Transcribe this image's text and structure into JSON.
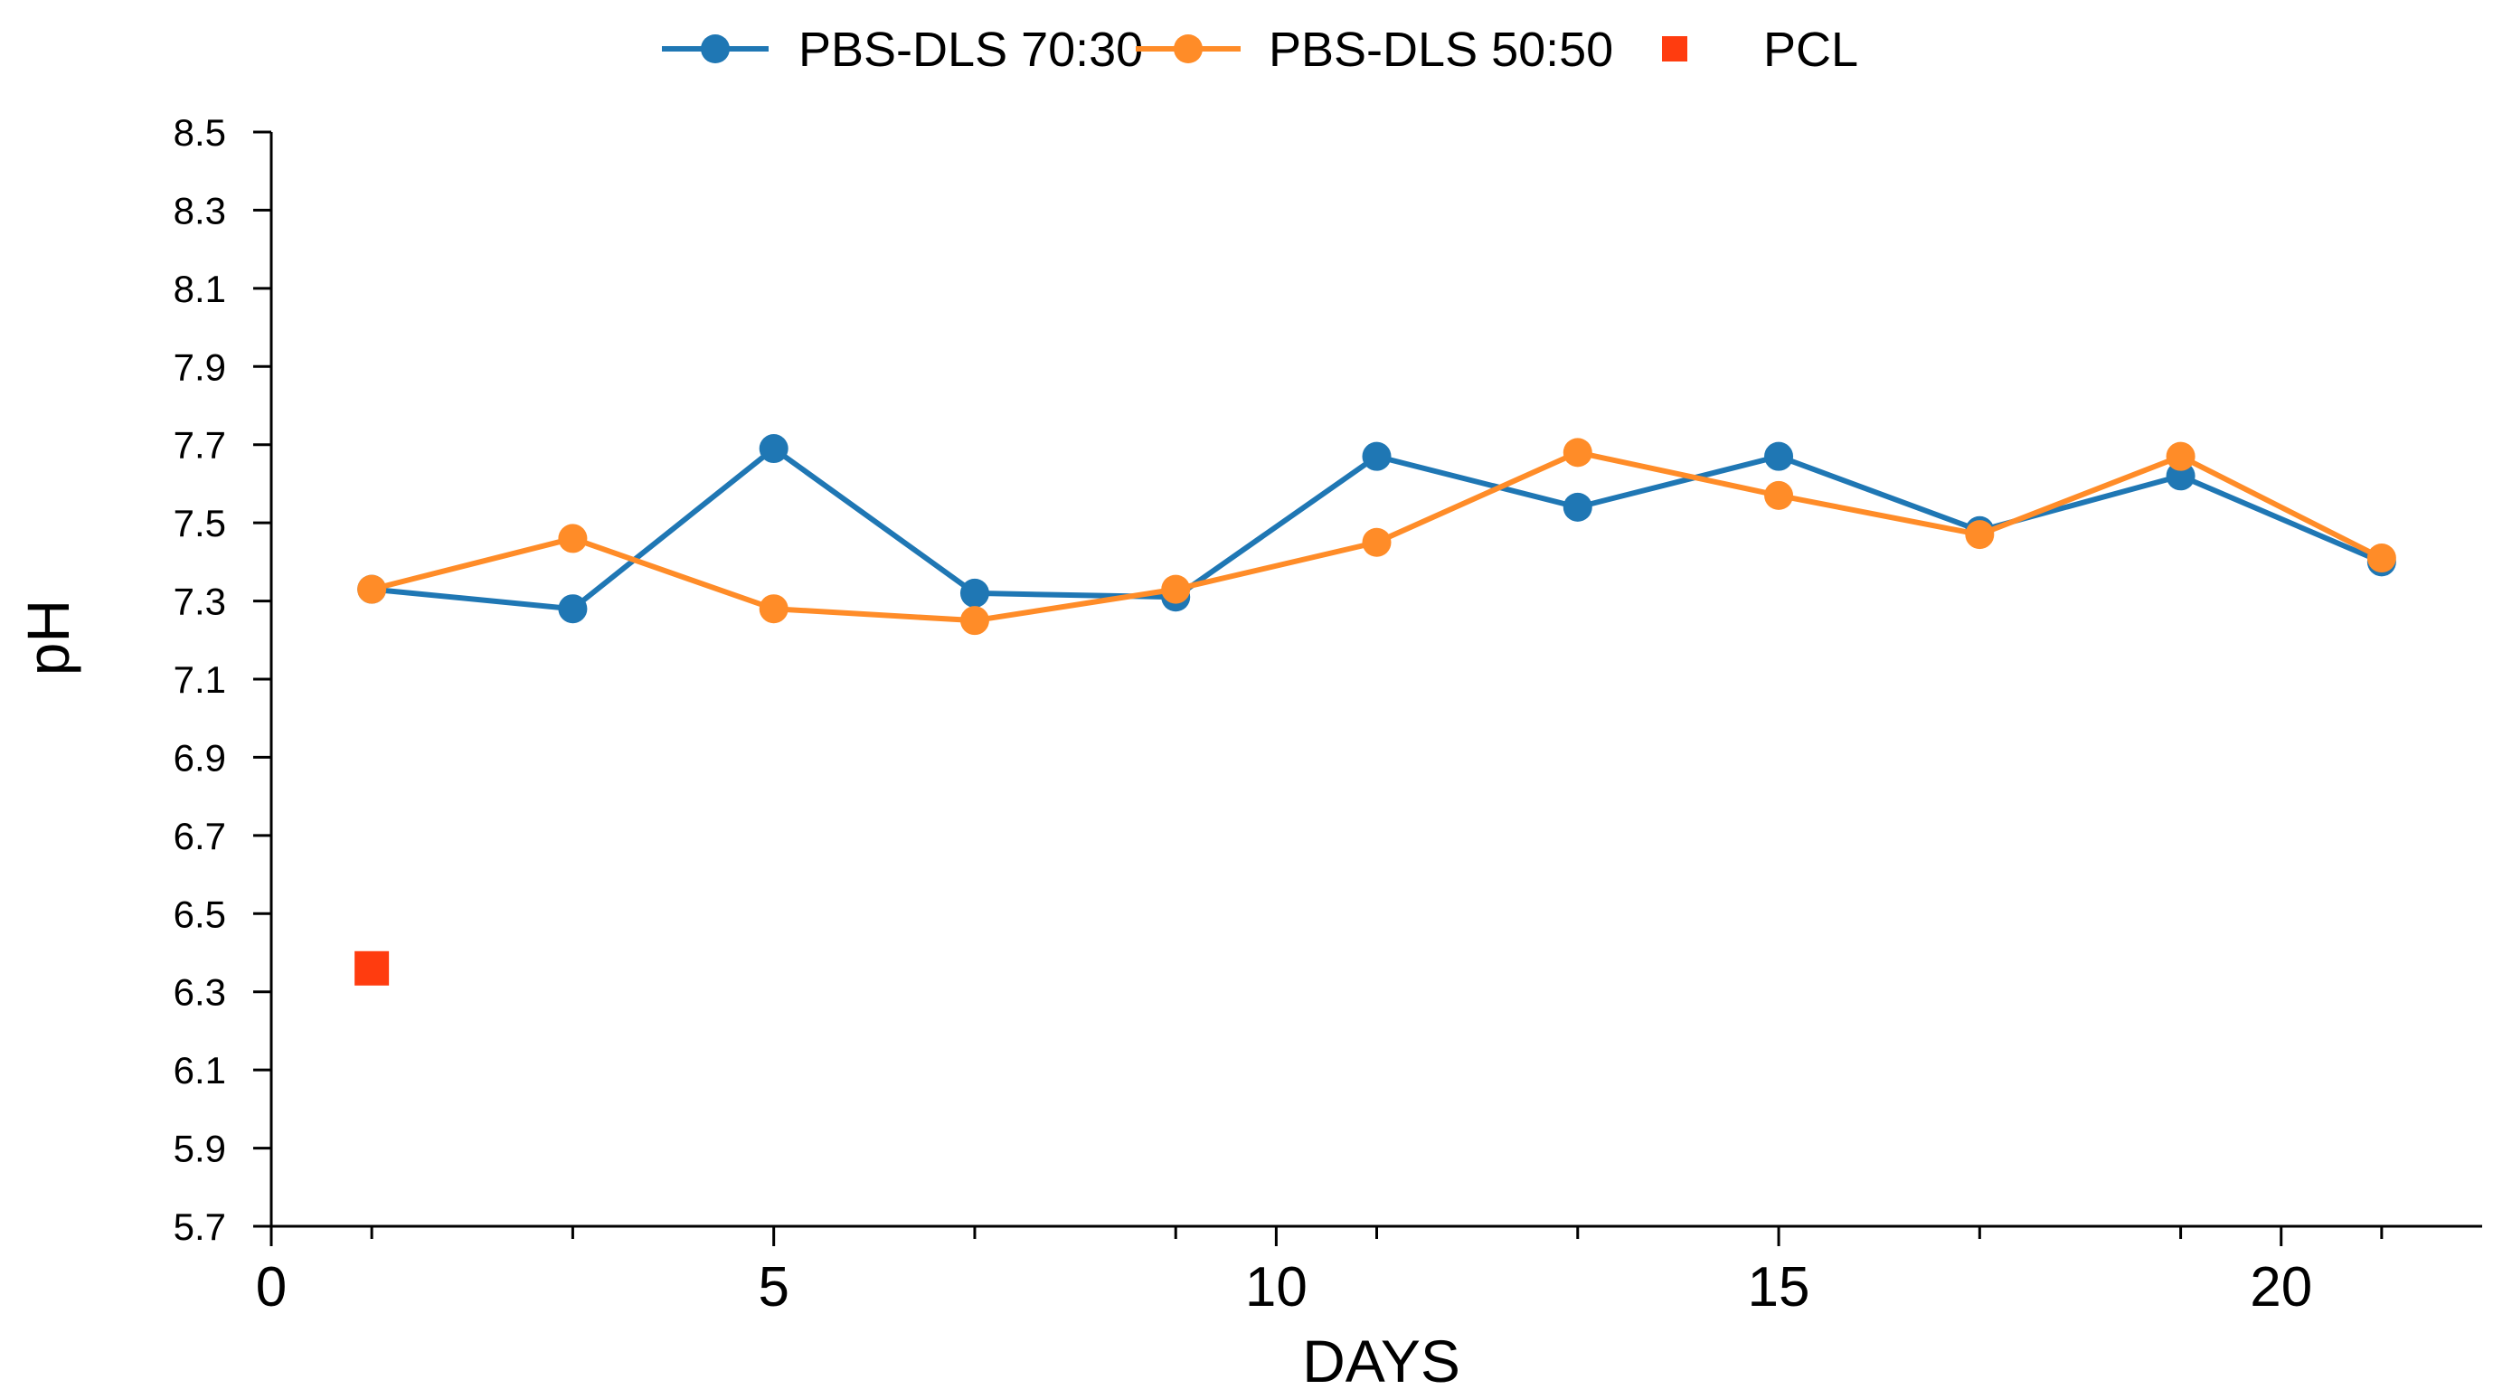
{
  "chart_data": {
    "type": "line",
    "title": "",
    "xlabel": "DAYS",
    "ylabel": "pH",
    "xlim": [
      0,
      22
    ],
    "ylim": [
      5.7,
      8.5
    ],
    "x_major_ticks": [
      0,
      5,
      10,
      15,
      20
    ],
    "x_minor_ticks": [
      1,
      3,
      7,
      9,
      11,
      13,
      17,
      19,
      21
    ],
    "x_tick_labels": [
      "0",
      "5",
      "10",
      "15",
      "20"
    ],
    "y_ticks": [
      5.7,
      5.9,
      6.1,
      6.3,
      6.5,
      6.7,
      6.9,
      7.1,
      7.3,
      7.5,
      7.7,
      7.9,
      8.1,
      8.3,
      8.5
    ],
    "y_tick_labels": [
      "5.7",
      "5.9",
      "6.1",
      "6.3",
      "6.5",
      "6.7",
      "6.9",
      "7.1",
      "7.3",
      "7.5",
      "7.7",
      "7.9",
      "8.1",
      "8.3",
      "8.5"
    ],
    "grid": false,
    "legend_position": "top-center",
    "series": [
      {
        "name": "PBS-DLS 70:30",
        "color": "#1f77b4",
        "marker": "circle",
        "line": true,
        "x": [
          1,
          3,
          5,
          7,
          9,
          11,
          13,
          15,
          17,
          19,
          21
        ],
        "y": [
          7.33,
          7.28,
          7.69,
          7.32,
          7.31,
          7.67,
          7.54,
          7.67,
          7.48,
          7.62,
          7.4
        ]
      },
      {
        "name": "PBS-DLS 50:50",
        "color": "#ff8c28",
        "marker": "circle",
        "line": true,
        "x": [
          1,
          3,
          5,
          7,
          9,
          11,
          13,
          15,
          17,
          19,
          21
        ],
        "y": [
          7.33,
          7.46,
          7.28,
          7.25,
          7.33,
          7.45,
          7.68,
          7.57,
          7.47,
          7.67,
          7.41
        ]
      },
      {
        "name": "PCL",
        "color": "#ff3c0f",
        "marker": "square",
        "line": false,
        "x": [
          1
        ],
        "y": [
          6.36
        ]
      }
    ]
  }
}
